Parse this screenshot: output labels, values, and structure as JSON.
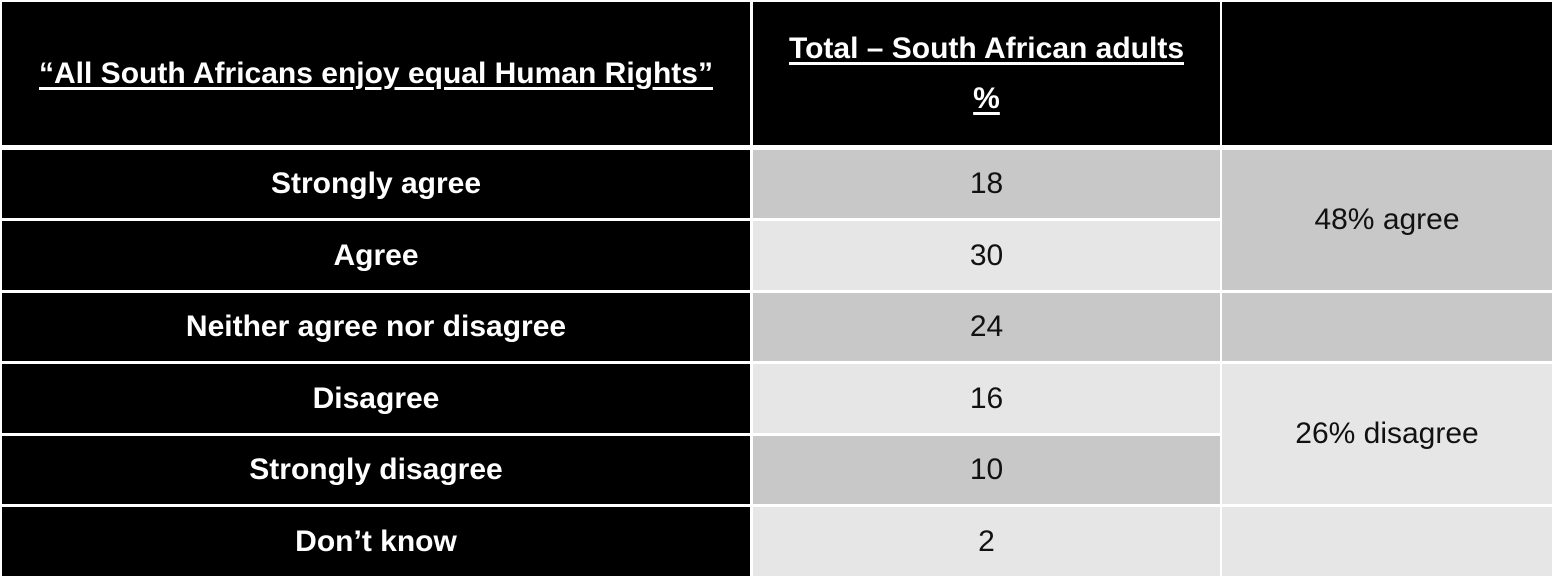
{
  "header": {
    "question": "“All South Africans enjoy equal Human Rights”",
    "total_line1": "Total – South African adults",
    "total_line2": "%",
    "blank": ""
  },
  "chart_data": {
    "type": "table",
    "columns": [
      "“All South Africans enjoy equal Human Rights”",
      "Total – South African adults %",
      ""
    ],
    "rows": [
      {
        "label": "Strongly agree",
        "value": "18"
      },
      {
        "label": "Agree",
        "value": "30"
      },
      {
        "label": "Neither agree nor disagree",
        "value": "24"
      },
      {
        "label": "Disagree",
        "value": "16"
      },
      {
        "label": "Strongly disagree",
        "value": "10"
      },
      {
        "label": "Don’t know",
        "value": "2"
      }
    ],
    "summaries": {
      "agree": "48% agree",
      "disagree": "26% disagree"
    }
  },
  "colors": {
    "header_bg": "#000000",
    "header_text": "#ffffff",
    "cell_dark": "#c8c8c8",
    "cell_light": "#e6e6e6"
  }
}
